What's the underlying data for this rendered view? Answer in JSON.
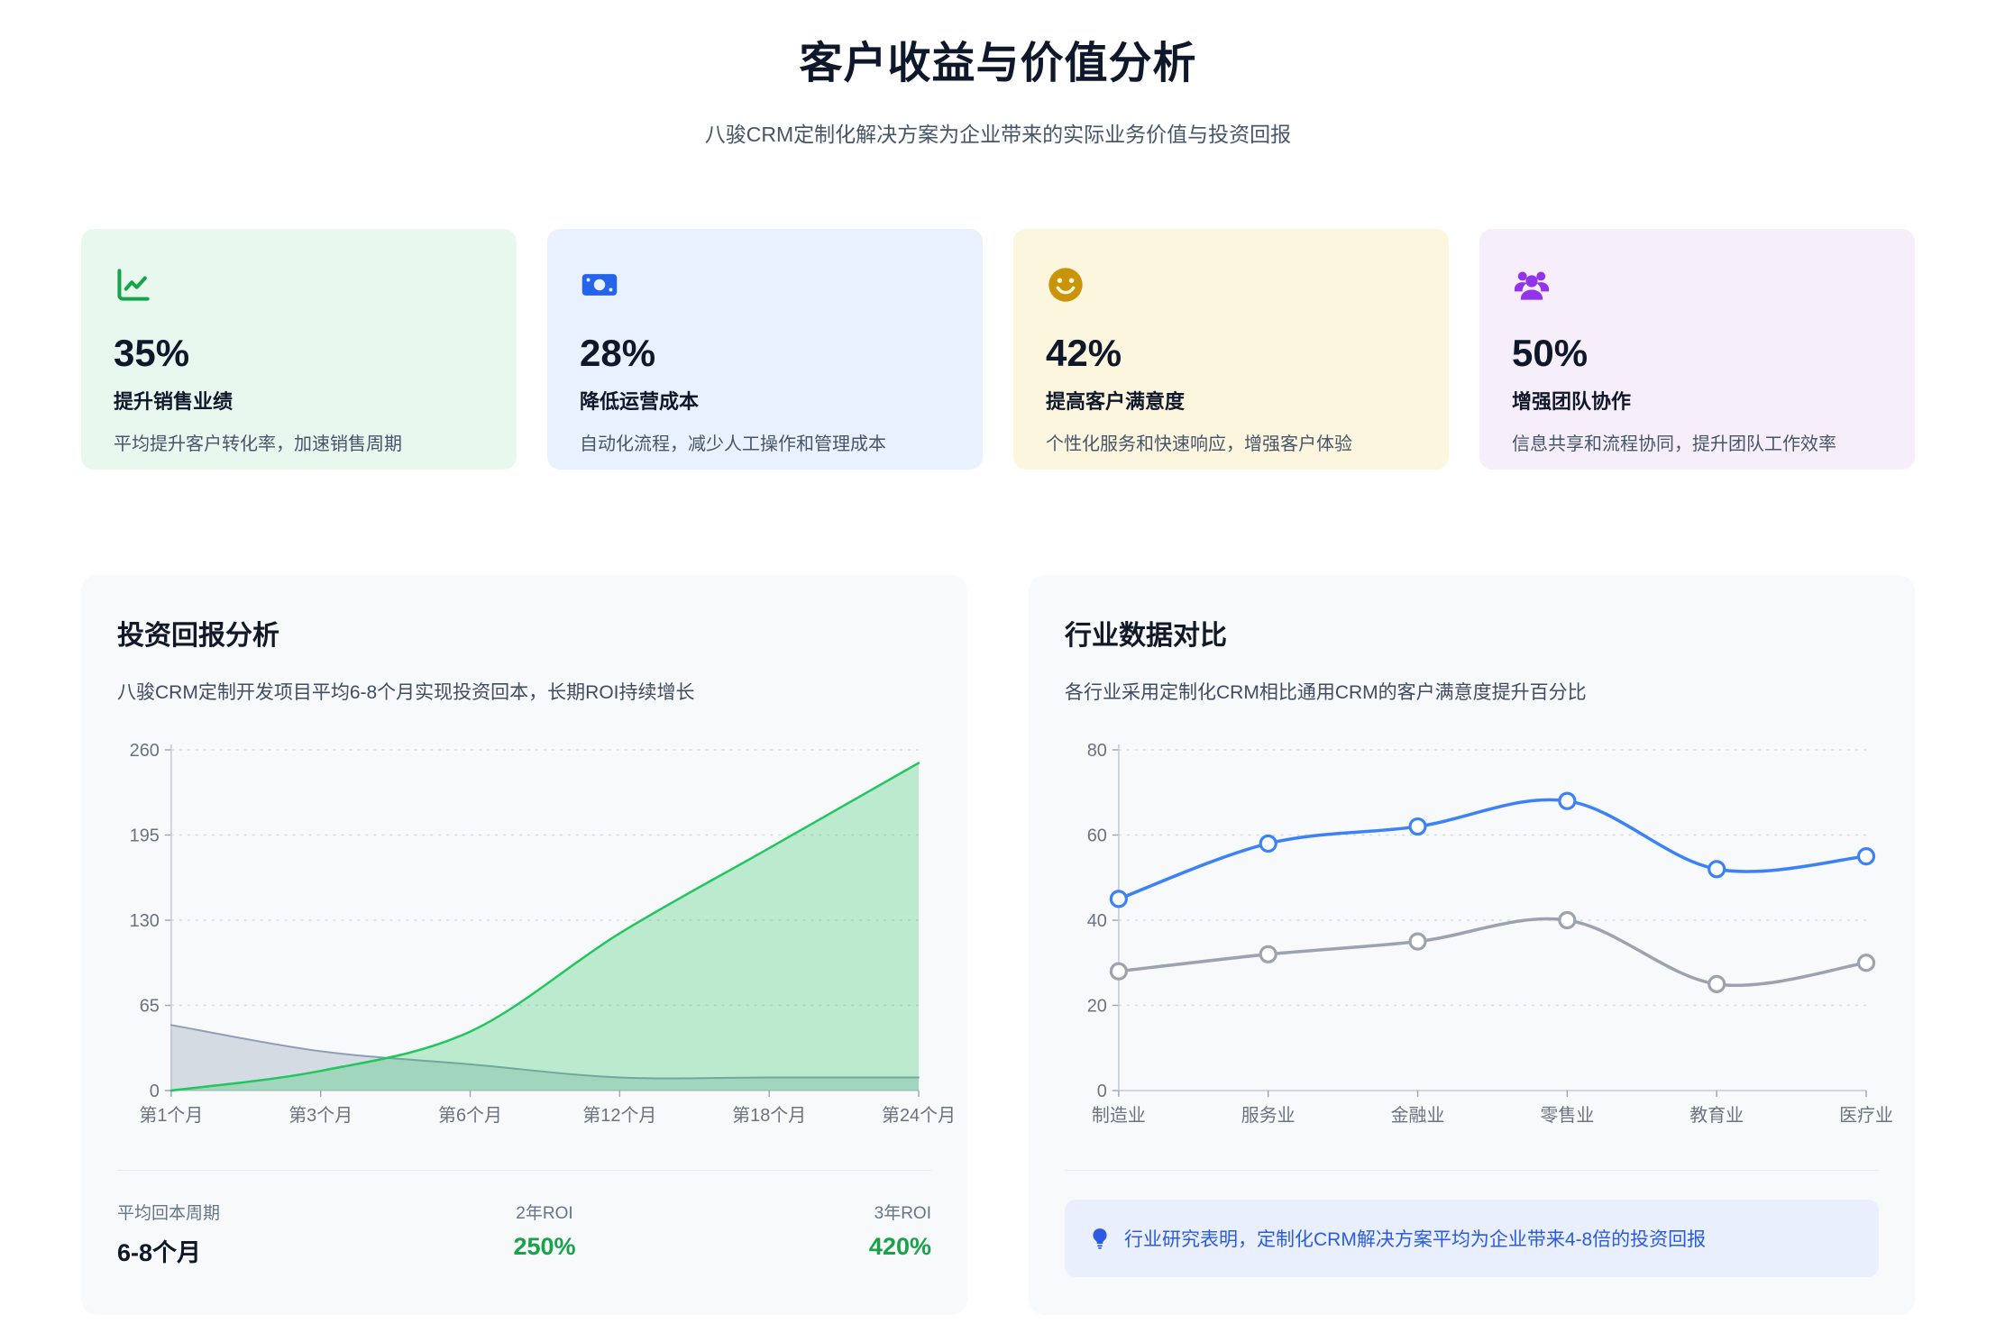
{
  "page": {
    "title": "客户收益与价值分析",
    "subtitle": "八骏CRM定制化解决方案为企业带来的实际业务价值与投资回报"
  },
  "benefit_cards": [
    {
      "icon": "trend-chart-icon",
      "value": "35%",
      "label": "提升销售业绩",
      "desc": "平均提升客户转化率，加速销售周期",
      "accent": "#16a34a",
      "bg": "#e9f8ef"
    },
    {
      "icon": "banknote-icon",
      "value": "28%",
      "label": "降低运营成本",
      "desc": "自动化流程，减少人工操作和管理成本",
      "accent": "#2563eb",
      "bg": "#e8f1fd"
    },
    {
      "icon": "smiley-icon",
      "value": "42%",
      "label": "提高客户满意度",
      "desc": "个性化服务和快速响应，增强客户体验",
      "accent": "#c9940a",
      "bg": "#fcf6df"
    },
    {
      "icon": "users-icon",
      "value": "50%",
      "label": "增强团队协作",
      "desc": "信息共享和流程协同，提升团队工作效率",
      "accent": "#9333ea",
      "bg": "#f6effb"
    }
  ],
  "roi_panel": {
    "title": "投资回报分析",
    "subtitle": "八骏CRM定制开发项目平均6-8个月实现投资回本，长期ROI持续增长",
    "stats": [
      {
        "label": "平均回本周期",
        "value": "6-8个月",
        "color": "#0f172a"
      },
      {
        "label": "2年ROI",
        "value": "250%",
        "color": "#16a34a"
      },
      {
        "label": "3年ROI",
        "value": "420%",
        "color": "#16a34a"
      }
    ]
  },
  "industry_panel": {
    "title": "行业数据对比",
    "subtitle": "各行业采用定制化CRM相比通用CRM的客户满意度提升百分比",
    "note": "行业研究表明，定制化CRM解决方案平均为企业带来4-8倍的投资回报"
  },
  "chart_data": [
    {
      "type": "area",
      "title": "投资回报分析",
      "categories": [
        "第1个月",
        "第3个月",
        "第6个月",
        "第12个月",
        "第18个月",
        "第24个月"
      ],
      "series": [
        {
          "name": "gray-area-series",
          "values": [
            50,
            30,
            20,
            10,
            10,
            10
          ],
          "color": "#8f9db5",
          "fill": "rgba(148,163,184,0.35)",
          "line_width": 2
        },
        {
          "name": "green-area-series",
          "values": [
            0,
            15,
            45,
            120,
            185,
            250
          ],
          "color": "#22c55e",
          "fill": "rgba(34,197,94,0.28)",
          "line_width": 2.5
        }
      ],
      "ylim": [
        0,
        260
      ],
      "yticks": [
        0,
        65,
        130,
        195,
        260
      ],
      "grid": "dashed-horizontal",
      "legend": "none"
    },
    {
      "type": "line",
      "title": "行业数据对比",
      "categories": [
        "制造业",
        "服务业",
        "金融业",
        "零售业",
        "教育业",
        "医疗业"
      ],
      "series": [
        {
          "name": "gray-line-series",
          "values": [
            28,
            32,
            35,
            40,
            25,
            30
          ],
          "color": "#9ca3af",
          "line_width": 3.5,
          "markers": true
        },
        {
          "name": "blue-line-series",
          "values": [
            45,
            58,
            62,
            68,
            52,
            55
          ],
          "color": "#3b82f6",
          "line_width": 3.5,
          "markers": true
        }
      ],
      "ylim": [
        0,
        80
      ],
      "yticks": [
        0,
        20,
        40,
        60,
        80
      ],
      "grid": "dashed-horizontal",
      "legend": "none"
    }
  ]
}
